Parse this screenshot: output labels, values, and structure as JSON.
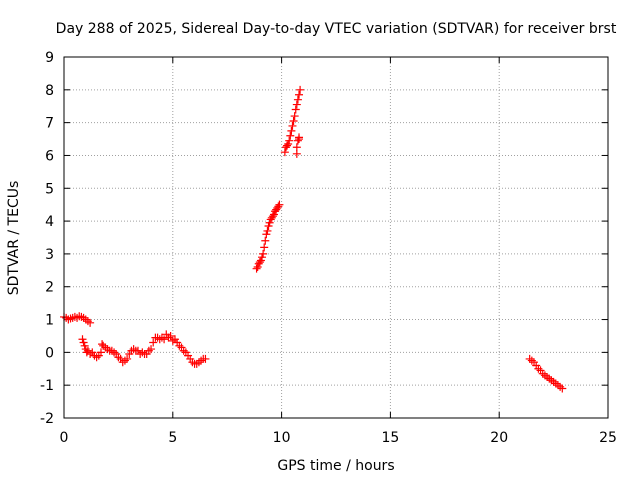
{
  "chart_data": {
    "type": "scatter",
    "title": "Day 288 of 2025, Sidereal Day-to-day VTEC variation (SDTVAR) for receiver brst",
    "xlabel": "GPS time / hours",
    "ylabel": "SDTVAR / TECUs",
    "xlim": [
      0,
      25
    ],
    "ylim": [
      -2,
      9
    ],
    "xticks": [
      "0",
      "5",
      "10",
      "15",
      "20",
      "25"
    ],
    "yticks": [
      "-2",
      "-1",
      "0",
      "1",
      "2",
      "3",
      "4",
      "5",
      "6",
      "7",
      "8",
      "9"
    ],
    "grid": true,
    "marker": "+",
    "series": [
      {
        "name": "brst",
        "color": "#ff0000",
        "x": [
          0.0,
          0.1,
          0.2,
          0.3,
          0.4,
          0.5,
          0.6,
          0.7,
          0.8,
          0.9,
          1.0,
          1.1,
          1.2,
          0.85,
          0.9,
          0.95,
          1.0,
          1.05,
          1.1,
          1.2,
          1.3,
          1.4,
          1.5,
          1.6,
          1.7,
          1.75,
          1.8,
          1.9,
          2.0,
          2.1,
          2.2,
          2.3,
          2.4,
          2.5,
          2.6,
          2.7,
          2.8,
          2.9,
          3.0,
          3.1,
          3.2,
          3.3,
          3.4,
          3.5,
          3.6,
          3.7,
          3.8,
          3.9,
          4.0,
          4.1,
          4.2,
          4.3,
          4.4,
          4.5,
          4.6,
          4.7,
          4.8,
          4.9,
          5.0,
          5.1,
          5.2,
          5.3,
          5.4,
          5.5,
          5.6,
          5.7,
          5.8,
          5.9,
          6.0,
          6.1,
          6.2,
          6.3,
          6.4,
          6.5,
          8.85,
          8.9,
          8.95,
          9.0,
          9.05,
          9.1,
          9.15,
          9.2,
          9.25,
          9.3,
          9.35,
          9.4,
          9.45,
          9.5,
          9.55,
          9.6,
          9.65,
          9.7,
          9.75,
          9.8,
          9.85,
          9.9,
          10.15,
          10.2,
          10.25,
          10.3,
          10.35,
          10.4,
          10.45,
          10.5,
          10.55,
          10.6,
          10.65,
          10.7,
          10.75,
          10.8,
          10.85,
          10.7,
          10.7,
          10.75,
          10.8,
          10.8,
          21.4,
          21.5,
          21.6,
          21.7,
          21.8,
          21.9,
          22.0,
          22.1,
          22.2,
          22.3,
          22.4,
          22.5,
          22.6,
          22.7,
          22.8,
          22.9
        ],
        "y": [
          1.08,
          1.05,
          1.0,
          1.03,
          1.05,
          1.08,
          1.05,
          1.1,
          1.08,
          1.05,
          1.0,
          0.95,
          0.9,
          0.4,
          0.3,
          0.2,
          0.1,
          0.0,
          0.05,
          -0.05,
          0.0,
          -0.1,
          -0.15,
          -0.1,
          0.0,
          0.25,
          0.2,
          0.15,
          0.1,
          0.05,
          0.05,
          0.0,
          -0.05,
          -0.15,
          -0.2,
          -0.3,
          -0.25,
          -0.2,
          -0.05,
          0.05,
          0.1,
          0.05,
          0.05,
          -0.05,
          0.0,
          -0.05,
          -0.05,
          0.05,
          0.1,
          0.3,
          0.45,
          0.45,
          0.4,
          0.45,
          0.4,
          0.55,
          0.45,
          0.5,
          0.35,
          0.4,
          0.3,
          0.2,
          0.15,
          0.05,
          0.0,
          -0.1,
          -0.2,
          -0.3,
          -0.35,
          -0.35,
          -0.3,
          -0.25,
          -0.2,
          -0.2,
          2.55,
          2.6,
          2.7,
          2.75,
          2.8,
          2.9,
          3.0,
          3.2,
          3.4,
          3.6,
          3.7,
          3.85,
          3.95,
          4.05,
          4.1,
          4.15,
          4.2,
          4.3,
          4.35,
          4.4,
          4.45,
          4.5,
          6.1,
          6.25,
          6.3,
          6.35,
          6.45,
          6.6,
          6.75,
          6.9,
          7.05,
          7.2,
          7.4,
          7.55,
          7.7,
          7.85,
          8.0,
          6.05,
          6.25,
          6.45,
          6.55,
          6.5,
          -0.2,
          -0.25,
          -0.3,
          -0.4,
          -0.5,
          -0.55,
          -0.65,
          -0.7,
          -0.75,
          -0.8,
          -0.85,
          -0.9,
          -0.95,
          -1.0,
          -1.05,
          -1.1
        ]
      }
    ]
  }
}
